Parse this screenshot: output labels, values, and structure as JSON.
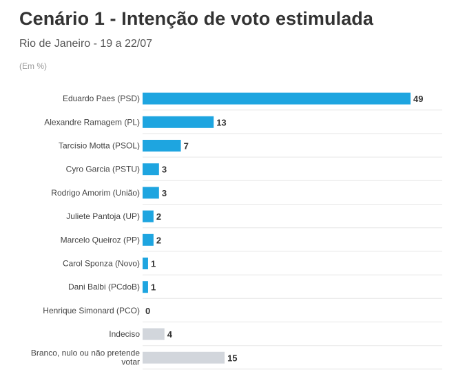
{
  "header": {
    "title": "Cenário 1 - Intenção de voto estimulada",
    "subtitle": "Rio de Janeiro - 19 a 22/07",
    "unit_note": "(Em %)"
  },
  "colors": {
    "candidate_bar": "#1ea5e0",
    "other_bar": "#d2d6dc",
    "gridline": "#e6e6e6"
  },
  "chart_data": {
    "type": "bar",
    "orientation": "horizontal",
    "title": "Cenário 1 - Intenção de voto estimulada",
    "subtitle": "Rio de Janeiro - 19 a 22/07",
    "ylabel": "",
    "xlabel": "",
    "unit": "(Em %)",
    "xlim": [
      0,
      49
    ],
    "grid": true,
    "categories": [
      "Eduardo Paes (PSD)",
      "Alexandre Ramagem (PL)",
      "Tarcísio Motta (PSOL)",
      "Cyro Garcia (PSTU)",
      "Rodrigo Amorim (União)",
      "Juliete Pantoja (UP)",
      "Marcelo Queiroz (PP)",
      "Carol Sponza (Novo)",
      "Dani Balbi (PCdoB)",
      "Henrique Simonard (PCO)",
      "Indeciso",
      "Branco, nulo ou não pretende votar"
    ],
    "values": [
      49,
      13,
      7,
      3,
      3,
      2,
      2,
      1,
      1,
      0,
      4,
      15
    ],
    "bar_color_groups": [
      "candidate",
      "candidate",
      "candidate",
      "candidate",
      "candidate",
      "candidate",
      "candidate",
      "candidate",
      "candidate",
      "candidate",
      "other",
      "other"
    ]
  }
}
